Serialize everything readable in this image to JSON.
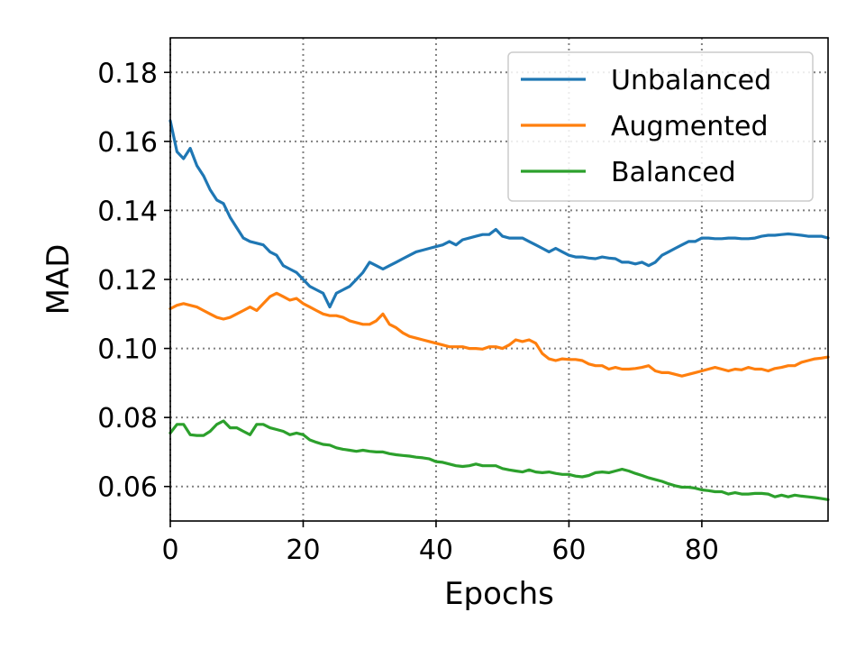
{
  "chart_data": {
    "type": "line",
    "xlabel": "Epochs",
    "ylabel": "MAD",
    "xlim": [
      0,
      99
    ],
    "ylim": [
      0.05,
      0.19
    ],
    "xticks": [
      "0",
      "20",
      "40",
      "60",
      "80"
    ],
    "yticks": [
      "0.06",
      "0.08",
      "0.10",
      "0.12",
      "0.14",
      "0.16",
      "0.18"
    ],
    "grid": true,
    "legend_position": "top-right",
    "series": [
      {
        "name": "Unbalanced",
        "color": "#1f77b4",
        "x": [
          0,
          1,
          2,
          3,
          4,
          5,
          6,
          7,
          8,
          9,
          10,
          11,
          12,
          13,
          14,
          15,
          16,
          17,
          18,
          19,
          20,
          21,
          22,
          23,
          24,
          25,
          26,
          27,
          28,
          29,
          30,
          31,
          32,
          33,
          34,
          35,
          36,
          37,
          38,
          39,
          40,
          41,
          42,
          43,
          44,
          45,
          46,
          47,
          48,
          49,
          50,
          51,
          52,
          53,
          54,
          55,
          56,
          57,
          58,
          59,
          60,
          61,
          62,
          63,
          64,
          65,
          66,
          67,
          68,
          69,
          70,
          71,
          72,
          73,
          74,
          75,
          76,
          77,
          78,
          79,
          80,
          81,
          82,
          83,
          84,
          85,
          86,
          87,
          88,
          89,
          90,
          91,
          92,
          93,
          94,
          95,
          96,
          97,
          98,
          99
        ],
        "values": [
          0.166,
          0.157,
          0.155,
          0.158,
          0.153,
          0.15,
          0.146,
          0.143,
          0.142,
          0.138,
          0.135,
          0.132,
          0.131,
          0.1305,
          0.13,
          0.128,
          0.127,
          0.124,
          0.123,
          0.122,
          0.12,
          0.118,
          0.117,
          0.116,
          0.112,
          0.116,
          0.117,
          0.118,
          0.12,
          0.122,
          0.125,
          0.124,
          0.123,
          0.124,
          0.125,
          0.126,
          0.127,
          0.128,
          0.1285,
          0.129,
          0.1295,
          0.13,
          0.131,
          0.13,
          0.1315,
          0.132,
          0.1325,
          0.133,
          0.133,
          0.1345,
          0.1325,
          0.132,
          0.132,
          0.132,
          0.131,
          0.13,
          0.129,
          0.128,
          0.129,
          0.128,
          0.127,
          0.1265,
          0.1265,
          0.1262,
          0.126,
          0.1265,
          0.1262,
          0.126,
          0.125,
          0.125,
          0.1245,
          0.125,
          0.124,
          0.125,
          0.127,
          0.128,
          0.129,
          0.13,
          0.131,
          0.131,
          0.132,
          0.132,
          0.1318,
          0.1318,
          0.132,
          0.132,
          0.1318,
          0.1318,
          0.132,
          0.1325,
          0.1328,
          0.1328,
          0.133,
          0.1332,
          0.133,
          0.1328,
          0.1325,
          0.1325,
          0.1325,
          0.132
        ]
      },
      {
        "name": "Augmented",
        "color": "#ff7f0e",
        "x": [
          0,
          1,
          2,
          3,
          4,
          5,
          6,
          7,
          8,
          9,
          10,
          11,
          12,
          13,
          14,
          15,
          16,
          17,
          18,
          19,
          20,
          21,
          22,
          23,
          24,
          25,
          26,
          27,
          28,
          29,
          30,
          31,
          32,
          33,
          34,
          35,
          36,
          37,
          38,
          39,
          40,
          41,
          42,
          43,
          44,
          45,
          46,
          47,
          48,
          49,
          50,
          51,
          52,
          53,
          54,
          55,
          56,
          57,
          58,
          59,
          60,
          61,
          62,
          63,
          64,
          65,
          66,
          67,
          68,
          69,
          70,
          71,
          72,
          73,
          74,
          75,
          76,
          77,
          78,
          79,
          80,
          81,
          82,
          83,
          84,
          85,
          86,
          87,
          88,
          89,
          90,
          91,
          92,
          93,
          94,
          95,
          96,
          97,
          98,
          99
        ],
        "values": [
          0.1115,
          0.1125,
          0.113,
          0.1125,
          0.112,
          0.111,
          0.11,
          0.109,
          0.1085,
          0.109,
          0.11,
          0.111,
          0.112,
          0.111,
          0.113,
          0.115,
          0.116,
          0.115,
          0.114,
          0.1145,
          0.113,
          0.112,
          0.111,
          0.11,
          0.1095,
          0.1095,
          0.109,
          0.108,
          0.1075,
          0.107,
          0.107,
          0.108,
          0.11,
          0.107,
          0.106,
          0.1045,
          0.1035,
          0.103,
          0.1025,
          0.102,
          0.1015,
          0.101,
          0.1005,
          0.1005,
          0.1005,
          0.1,
          0.1,
          0.0998,
          0.1005,
          0.1005,
          0.1,
          0.101,
          0.1025,
          0.102,
          0.1025,
          0.1015,
          0.0985,
          0.097,
          0.0965,
          0.097,
          0.0968,
          0.0968,
          0.0965,
          0.0955,
          0.095,
          0.095,
          0.094,
          0.0945,
          0.094,
          0.094,
          0.0942,
          0.0945,
          0.095,
          0.0935,
          0.093,
          0.093,
          0.0925,
          0.092,
          0.0925,
          0.093,
          0.0935,
          0.094,
          0.0945,
          0.094,
          0.0935,
          0.094,
          0.0938,
          0.0945,
          0.094,
          0.094,
          0.0935,
          0.0942,
          0.0945,
          0.095,
          0.095,
          0.096,
          0.0965,
          0.097,
          0.0972,
          0.0975
        ]
      },
      {
        "name": "Balanced",
        "color": "#2ca02c",
        "x": [
          0,
          1,
          2,
          3,
          4,
          5,
          6,
          7,
          8,
          9,
          10,
          11,
          12,
          13,
          14,
          15,
          16,
          17,
          18,
          19,
          20,
          21,
          22,
          23,
          24,
          25,
          26,
          27,
          28,
          29,
          30,
          31,
          32,
          33,
          34,
          35,
          36,
          37,
          38,
          39,
          40,
          41,
          42,
          43,
          44,
          45,
          46,
          47,
          48,
          49,
          50,
          51,
          52,
          53,
          54,
          55,
          56,
          57,
          58,
          59,
          60,
          61,
          62,
          63,
          64,
          65,
          66,
          67,
          68,
          69,
          70,
          71,
          72,
          73,
          74,
          75,
          76,
          77,
          78,
          79,
          80,
          81,
          82,
          83,
          84,
          85,
          86,
          87,
          88,
          89,
          90,
          91,
          92,
          93,
          94,
          95,
          96,
          97,
          98,
          99
        ],
        "values": [
          0.0755,
          0.078,
          0.078,
          0.075,
          0.0748,
          0.0748,
          0.076,
          0.078,
          0.079,
          0.077,
          0.077,
          0.076,
          0.075,
          0.078,
          0.078,
          0.077,
          0.0765,
          0.076,
          0.075,
          0.0755,
          0.075,
          0.0735,
          0.0728,
          0.0722,
          0.072,
          0.0712,
          0.0708,
          0.0705,
          0.0702,
          0.0705,
          0.0702,
          0.07,
          0.07,
          0.0695,
          0.0692,
          0.069,
          0.0688,
          0.0685,
          0.0683,
          0.068,
          0.0672,
          0.067,
          0.0665,
          0.066,
          0.0658,
          0.066,
          0.0665,
          0.066,
          0.066,
          0.066,
          0.0652,
          0.0648,
          0.0645,
          0.0642,
          0.0648,
          0.0642,
          0.064,
          0.0642,
          0.0638,
          0.0635,
          0.0635,
          0.063,
          0.0628,
          0.0632,
          0.064,
          0.0642,
          0.064,
          0.0645,
          0.065,
          0.0645,
          0.0638,
          0.0632,
          0.0625,
          0.062,
          0.0615,
          0.0608,
          0.0602,
          0.0598,
          0.0598,
          0.0595,
          0.059,
          0.0588,
          0.0585,
          0.0585,
          0.0578,
          0.0582,
          0.0578,
          0.0578,
          0.058,
          0.058,
          0.0578,
          0.057,
          0.0575,
          0.057,
          0.0575,
          0.0572,
          0.057,
          0.0568,
          0.0565,
          0.0562
        ]
      }
    ]
  }
}
